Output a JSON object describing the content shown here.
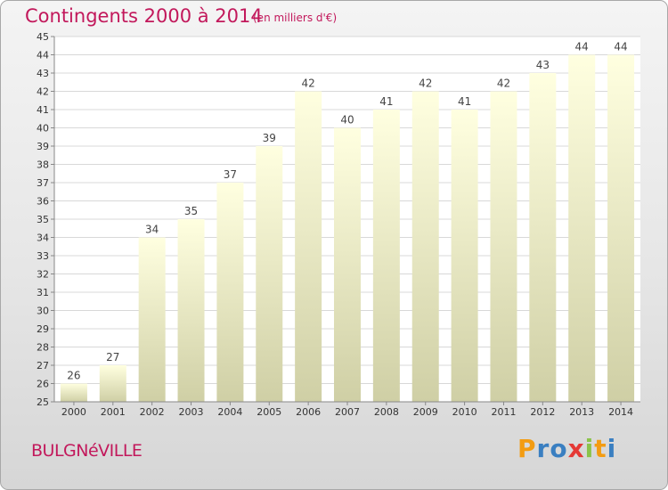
{
  "header": {
    "title": "Contingents 2000 à 2014",
    "subtitle": "(en milliers d'€)"
  },
  "footer": {
    "commune": "BULGNéVILLE",
    "logo_text": "Proxiti"
  },
  "colors": {
    "title": "#c2185b",
    "bar_top": "#ffffe0",
    "bar_bottom": "#cfcfa5",
    "logo_letters": [
      "#f39c12",
      "#3a7fc1",
      "#3a7fc1",
      "#e53935",
      "#8bc34a",
      "#f39c12",
      "#3a7fc1"
    ]
  },
  "chart_data": {
    "type": "bar",
    "title": "Contingents 2000 à 2014",
    "subtitle": "(en milliers d'€)",
    "categories": [
      "2000",
      "2001",
      "2002",
      "2003",
      "2004",
      "2005",
      "2006",
      "2007",
      "2008",
      "2009",
      "2010",
      "2011",
      "2012",
      "2013",
      "2014"
    ],
    "values": [
      26,
      27,
      34,
      35,
      37,
      39,
      42,
      40,
      41,
      42,
      41,
      42,
      43,
      44,
      44
    ],
    "ylim": [
      25,
      45
    ],
    "yticks": [
      25,
      26,
      27,
      28,
      29,
      30,
      31,
      32,
      33,
      34,
      35,
      36,
      37,
      38,
      39,
      40,
      41,
      42,
      43,
      44,
      45
    ],
    "grid": true,
    "xlabel": "",
    "ylabel": ""
  }
}
